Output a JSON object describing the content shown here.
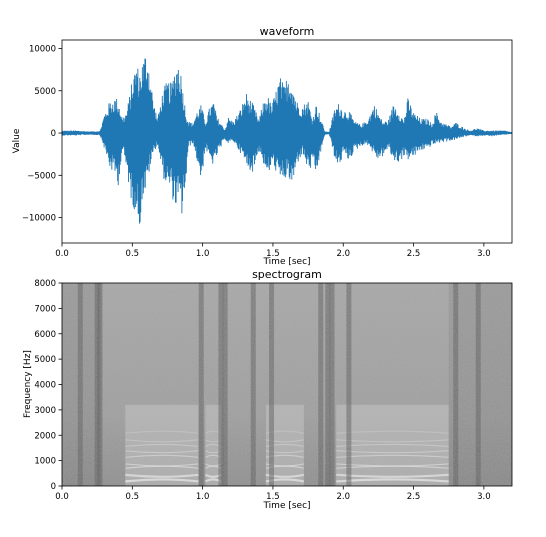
{
  "chart_data": [
    {
      "type": "line",
      "title": "waveform",
      "xlabel": "Time [sec]",
      "ylabel": "Value",
      "xlim": [
        0.0,
        3.2
      ],
      "ylim": [
        -13000,
        11000
      ],
      "xticks": [
        "0.0",
        "0.5",
        "1.0",
        "1.5",
        "2.0",
        "2.5",
        "3.0"
      ],
      "yticks": [
        "−10000",
        "−5000",
        "0",
        "5000",
        "10000"
      ],
      "series_color": "#1f77b4",
      "grid": false,
      "envelope": {
        "t": [
          0.0,
          0.1,
          0.2,
          0.27,
          0.3,
          0.34,
          0.38,
          0.4,
          0.43,
          0.46,
          0.5,
          0.53,
          0.55,
          0.57,
          0.6,
          0.62,
          0.65,
          0.68,
          0.72,
          0.75,
          0.78,
          0.8,
          0.83,
          0.85,
          0.88,
          0.9,
          0.93,
          0.96,
          0.99,
          1.02,
          1.05,
          1.08,
          1.1,
          1.13,
          1.16,
          1.18,
          1.22,
          1.27,
          1.31,
          1.36,
          1.4,
          1.43,
          1.46,
          1.49,
          1.52,
          1.55,
          1.58,
          1.61,
          1.64,
          1.67,
          1.71,
          1.75,
          1.78,
          1.81,
          1.84,
          1.87,
          1.9,
          1.94,
          1.97,
          2.0,
          2.04,
          2.08,
          2.13,
          2.18,
          2.22,
          2.25,
          2.28,
          2.32,
          2.36,
          2.4,
          2.43,
          2.46,
          2.5,
          2.55,
          2.6,
          2.63,
          2.66,
          2.7,
          2.74,
          2.77,
          2.8,
          2.85,
          2.9,
          2.95,
          3.0,
          3.05,
          3.1,
          3.15,
          3.2
        ],
        "hi": [
          300,
          300,
          200,
          250,
          2200,
          3800,
          4300,
          4000,
          1800,
          2600,
          6400,
          8600,
          7200,
          8500,
          10100,
          8200,
          3800,
          1800,
          5300,
          6200,
          5900,
          7600,
          8900,
          6800,
          2600,
          1400,
          1200,
          2600,
          3400,
          1300,
          3100,
          3900,
          2000,
          1200,
          400,
          1900,
          1400,
          2900,
          4800,
          3400,
          1600,
          3600,
          4600,
          3300,
          5000,
          6800,
          5600,
          7300,
          6000,
          3800,
          3300,
          4000,
          1700,
          3600,
          1800,
          200,
          150,
          3000,
          3600,
          2800,
          2700,
          1400,
          1000,
          1800,
          3500,
          2400,
          1400,
          1500,
          3600,
          2600,
          1500,
          4200,
          2500,
          1700,
          1700,
          1100,
          2600,
          1300,
          1000,
          800,
          1300,
          700,
          300,
          600,
          300,
          300,
          300,
          300,
          100
        ],
        "lo": [
          -300,
          -300,
          -200,
          -250,
          -1800,
          -4200,
          -5200,
          -6200,
          -2000,
          -4600,
          -8800,
          -9300,
          -11800,
          -8000,
          -6700,
          -4700,
          -2400,
          -1400,
          -5300,
          -6500,
          -7200,
          -8900,
          -8600,
          -10200,
          -6300,
          -1700,
          -1200,
          -3300,
          -5800,
          -1800,
          -3300,
          -3900,
          -2800,
          -1800,
          -700,
          -1300,
          -1000,
          -2400,
          -4000,
          -4700,
          -2000,
          -3500,
          -5400,
          -3900,
          -4500,
          -6000,
          -5500,
          -5500,
          -6500,
          -3800,
          -2400,
          -4500,
          -4200,
          -5000,
          -2300,
          -200,
          -150,
          -3100,
          -4200,
          -2500,
          -3300,
          -2200,
          -1500,
          -1400,
          -2700,
          -3200,
          -2800,
          -1900,
          -3400,
          -3500,
          -2800,
          -3200,
          -2900,
          -2100,
          -1900,
          -1500,
          -1300,
          -1100,
          -1000,
          -900,
          -800,
          -500,
          -300,
          -400,
          -300,
          -400,
          -300,
          -200,
          -100
        ]
      }
    },
    {
      "type": "heatmap",
      "title": "spectrogram",
      "xlabel": "Time [sec]",
      "ylabel": "Frequency [Hz]",
      "xlim": [
        0.0,
        3.2
      ],
      "ylim": [
        0,
        8000
      ],
      "xticks": [
        "0.0",
        "0.5",
        "1.0",
        "1.5",
        "2.0",
        "2.5",
        "3.0"
      ],
      "yticks": [
        "0",
        "1000",
        "2000",
        "3000",
        "4000",
        "5000",
        "6000",
        "7000",
        "8000"
      ],
      "colormap": "gray",
      "voiced_segments": [
        [
          0.45,
          0.97
        ],
        [
          1.02,
          1.13
        ],
        [
          1.45,
          1.72
        ],
        [
          1.95,
          2.75
        ]
      ],
      "dark_columns": [
        0.13,
        0.25,
        0.27,
        0.99,
        1.13,
        1.16,
        1.36,
        1.49,
        1.84,
        1.89,
        1.92,
        2.04,
        2.8,
        2.96
      ]
    }
  ]
}
